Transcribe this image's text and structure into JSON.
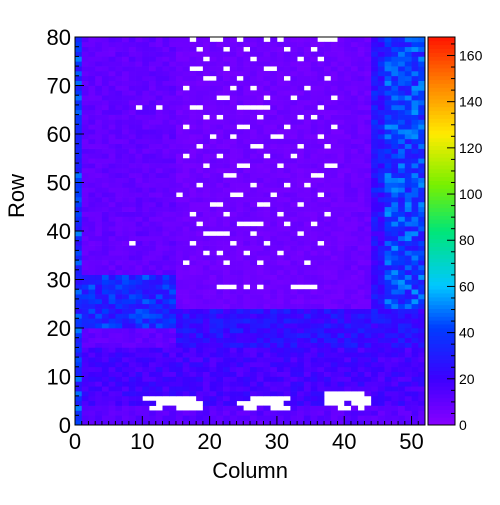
{
  "chart_data": {
    "type": "heatmap",
    "title": "",
    "xlabel": "Column",
    "ylabel": "Row",
    "xlim": [
      0,
      52
    ],
    "ylim": [
      0,
      80
    ],
    "x_ticks": [
      "0",
      "10",
      "20",
      "30",
      "40",
      "50"
    ],
    "y_ticks": [
      "0",
      "10",
      "20",
      "30",
      "40",
      "50",
      "60",
      "70",
      "80"
    ],
    "zlim": [
      0,
      168
    ],
    "colorbar_ticks": [
      "0",
      "20",
      "40",
      "60",
      "80",
      "100",
      "120",
      "140",
      "160"
    ],
    "colormap": "rainbow (violet to red)",
    "empty_cell_color": "#ffffff",
    "columns": 52,
    "rows": 80,
    "grid": false,
    "regions": [
      {
        "cols": [
          0,
          15
        ],
        "rows": [
          31,
          80
        ],
        "value": 10
      },
      {
        "cols": [
          15,
          40
        ],
        "rows": [
          24,
          80
        ],
        "value": 7
      },
      {
        "cols": [
          40,
          44
        ],
        "rows": [
          24,
          80
        ],
        "value": 8
      },
      {
        "cols": [
          44,
          46
        ],
        "rows": [
          48,
          80
        ],
        "value": 30
      },
      {
        "cols": [
          46,
          52
        ],
        "rows": [
          48,
          80
        ],
        "value": 40
      },
      {
        "cols": [
          44,
          46
        ],
        "rows": [
          24,
          48
        ],
        "value": 25
      },
      {
        "cols": [
          46,
          52
        ],
        "rows": [
          24,
          48
        ],
        "value": 40
      },
      {
        "cols": [
          0,
          15
        ],
        "rows": [
          20,
          31
        ],
        "value": 35
      },
      {
        "cols": [
          15,
          52
        ],
        "rows": [
          16,
          24
        ],
        "value": 25
      },
      {
        "cols": [
          0,
          52
        ],
        "rows": [
          4,
          16
        ],
        "value": 18
      },
      {
        "cols": [
          0,
          52
        ],
        "rows": [
          0,
          4
        ],
        "value": 12
      },
      {
        "cols": [
          0,
          1
        ],
        "rows": [
          0,
          80
        ],
        "value": 38
      }
    ],
    "empty_cells": [
      [
        10,
        5
      ],
      [
        11,
        5
      ],
      [
        12,
        5
      ],
      [
        13,
        5
      ],
      [
        14,
        5
      ],
      [
        15,
        5
      ],
      [
        16,
        5
      ],
      [
        17,
        5
      ],
      [
        12,
        4
      ],
      [
        13,
        4
      ],
      [
        14,
        4
      ],
      [
        15,
        4
      ],
      [
        16,
        4
      ],
      [
        17,
        4
      ],
      [
        18,
        4
      ],
      [
        11,
        3
      ],
      [
        12,
        3
      ],
      [
        15,
        3
      ],
      [
        16,
        3
      ],
      [
        17,
        3
      ],
      [
        18,
        3
      ],
      [
        26,
        5
      ],
      [
        27,
        5
      ],
      [
        28,
        5
      ],
      [
        29,
        5
      ],
      [
        30,
        5
      ],
      [
        31,
        5
      ],
      [
        24,
        4
      ],
      [
        25,
        4
      ],
      [
        26,
        4
      ],
      [
        27,
        4
      ],
      [
        28,
        4
      ],
      [
        29,
        4
      ],
      [
        30,
        4
      ],
      [
        25,
        3
      ],
      [
        26,
        3
      ],
      [
        29,
        3
      ],
      [
        30,
        3
      ],
      [
        31,
        3
      ],
      [
        37,
        6
      ],
      [
        38,
        6
      ],
      [
        39,
        6
      ],
      [
        40,
        6
      ],
      [
        41,
        6
      ],
      [
        42,
        6
      ],
      [
        37,
        5
      ],
      [
        38,
        5
      ],
      [
        39,
        5
      ],
      [
        40,
        5
      ],
      [
        41,
        5
      ],
      [
        42,
        5
      ],
      [
        43,
        5
      ],
      [
        37,
        4
      ],
      [
        38,
        4
      ],
      [
        39,
        4
      ],
      [
        41,
        4
      ],
      [
        42,
        4
      ],
      [
        43,
        4
      ],
      [
        39,
        3
      ],
      [
        40,
        3
      ],
      [
        42,
        3
      ],
      [
        17,
        79
      ],
      [
        20,
        79
      ],
      [
        21,
        79
      ],
      [
        24,
        79
      ],
      [
        28,
        79
      ],
      [
        30,
        79
      ],
      [
        36,
        79
      ],
      [
        37,
        79
      ],
      [
        38,
        79
      ],
      [
        18,
        77
      ],
      [
        22,
        77
      ],
      [
        25,
        77
      ],
      [
        31,
        77
      ],
      [
        35,
        77
      ],
      [
        19,
        75
      ],
      [
        26,
        75
      ],
      [
        33,
        75
      ],
      [
        36,
        75
      ],
      [
        17,
        73
      ],
      [
        18,
        73
      ],
      [
        22,
        73
      ],
      [
        28,
        73
      ],
      [
        29,
        73
      ],
      [
        19,
        71
      ],
      [
        20,
        71
      ],
      [
        24,
        71
      ],
      [
        31,
        71
      ],
      [
        37,
        71
      ],
      [
        16,
        69
      ],
      [
        23,
        69
      ],
      [
        26,
        69
      ],
      [
        34,
        69
      ],
      [
        21,
        67
      ],
      [
        22,
        67
      ],
      [
        28,
        67
      ],
      [
        32,
        67
      ],
      [
        38,
        67
      ],
      [
        9,
        65
      ],
      [
        12,
        65
      ],
      [
        17,
        65
      ],
      [
        18,
        65
      ],
      [
        24,
        65
      ],
      [
        25,
        65
      ],
      [
        26,
        65
      ],
      [
        27,
        65
      ],
      [
        28,
        65
      ],
      [
        36,
        65
      ],
      [
        19,
        63
      ],
      [
        21,
        63
      ],
      [
        27,
        63
      ],
      [
        33,
        63
      ],
      [
        35,
        63
      ],
      [
        16,
        61
      ],
      [
        24,
        61
      ],
      [
        25,
        61
      ],
      [
        31,
        61
      ],
      [
        38,
        61
      ],
      [
        20,
        59
      ],
      [
        23,
        59
      ],
      [
        29,
        59
      ],
      [
        30,
        59
      ],
      [
        36,
        59
      ],
      [
        18,
        57
      ],
      [
        26,
        57
      ],
      [
        27,
        57
      ],
      [
        33,
        57
      ],
      [
        37,
        57
      ],
      [
        16,
        55
      ],
      [
        21,
        55
      ],
      [
        28,
        55
      ],
      [
        32,
        55
      ],
      [
        19,
        53
      ],
      [
        24,
        53
      ],
      [
        25,
        53
      ],
      [
        30,
        53
      ],
      [
        37,
        53
      ],
      [
        38,
        53
      ],
      [
        22,
        51
      ],
      [
        23,
        51
      ],
      [
        35,
        51
      ],
      [
        36,
        51
      ],
      [
        18,
        49
      ],
      [
        26,
        49
      ],
      [
        31,
        49
      ],
      [
        34,
        49
      ],
      [
        15,
        47
      ],
      [
        23,
        47
      ],
      [
        24,
        47
      ],
      [
        29,
        47
      ],
      [
        36,
        47
      ],
      [
        20,
        45
      ],
      [
        21,
        45
      ],
      [
        27,
        45
      ],
      [
        28,
        45
      ],
      [
        33,
        45
      ],
      [
        17,
        43
      ],
      [
        22,
        43
      ],
      [
        30,
        43
      ],
      [
        37,
        43
      ],
      [
        18,
        41
      ],
      [
        24,
        41
      ],
      [
        25,
        41
      ],
      [
        26,
        41
      ],
      [
        27,
        41
      ],
      [
        31,
        41
      ],
      [
        35,
        41
      ],
      [
        19,
        39
      ],
      [
        20,
        39
      ],
      [
        21,
        39
      ],
      [
        22,
        39
      ],
      [
        26,
        39
      ],
      [
        33,
        39
      ],
      [
        8,
        37
      ],
      [
        17,
        37
      ],
      [
        23,
        37
      ],
      [
        28,
        37
      ],
      [
        36,
        37
      ],
      [
        19,
        35
      ],
      [
        21,
        35
      ],
      [
        25,
        35
      ],
      [
        30,
        35
      ],
      [
        16,
        33
      ],
      [
        22,
        33
      ],
      [
        27,
        33
      ],
      [
        34,
        33
      ],
      [
        21,
        28
      ],
      [
        22,
        28
      ],
      [
        23,
        28
      ],
      [
        25,
        28
      ],
      [
        27,
        28
      ],
      [
        32,
        28
      ],
      [
        33,
        28
      ],
      [
        34,
        28
      ],
      [
        35,
        28
      ]
    ]
  }
}
